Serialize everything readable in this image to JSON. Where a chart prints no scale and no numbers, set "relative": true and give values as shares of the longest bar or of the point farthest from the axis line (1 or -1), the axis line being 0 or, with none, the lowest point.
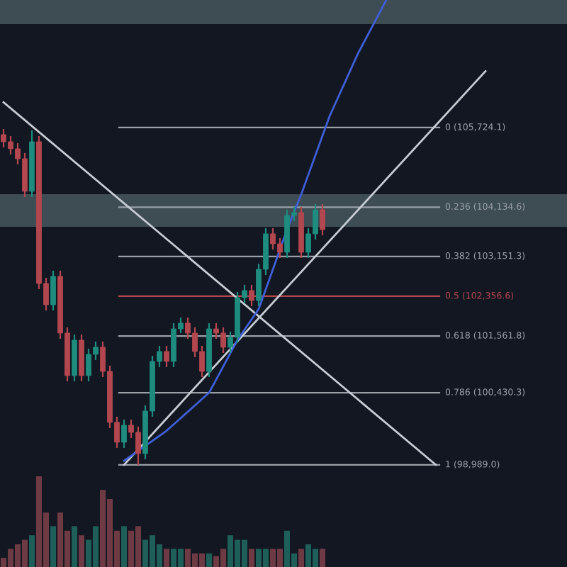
{
  "chart_data": [
    {
      "type": "candlestick",
      "categories": [
        null,
        null,
        null,
        null,
        null,
        null,
        null,
        null,
        null,
        null,
        null,
        null,
        null,
        null,
        null,
        null,
        null,
        null,
        null,
        null,
        null,
        null,
        null,
        null,
        null,
        null,
        null,
        null,
        null,
        null,
        null,
        null,
        null,
        null,
        null,
        null,
        null,
        null,
        null,
        null,
        null,
        null,
        null,
        null,
        null,
        null,
        null,
        null,
        null,
        null,
        null,
        null,
        null,
        null,
        null,
        null,
        null,
        null,
        null,
        null,
        null,
        null,
        null,
        null,
        null,
        null,
        null,
        null,
        null,
        null,
        null,
        null,
        null,
        null,
        null,
        null,
        null,
        null,
        null,
        null
      ],
      "ohlc": [
        [
          105583,
          105696,
          105328,
          105441
        ],
        [
          105441,
          105554,
          105186,
          105300
        ],
        [
          105300,
          105413,
          104988,
          105101
        ],
        [
          105101,
          105215,
          104337,
          104451
        ],
        [
          104451,
          105667,
          104337,
          105441
        ],
        [
          105441,
          105554,
          102498,
          102611
        ],
        [
          102611,
          102724,
          102073,
          102187
        ],
        [
          102187,
          102866,
          102073,
          102753
        ],
        [
          102753,
          102866,
          101507,
          101621
        ],
        [
          101621,
          101734,
          100658,
          100772
        ],
        [
          100772,
          101592,
          100658,
          101479
        ],
        [
          101479,
          101592,
          100658,
          100772
        ],
        [
          100772,
          101309,
          100658,
          101196
        ],
        [
          101196,
          101451,
          101083,
          101338
        ],
        [
          101338,
          101451,
          100743,
          100856
        ],
        [
          100856,
          100970,
          99724,
          99838
        ],
        [
          99838,
          99951,
          99328,
          99441
        ],
        [
          99441,
          99894,
          99328,
          99781
        ],
        [
          99781,
          99894,
          99526,
          99640
        ],
        [
          99640,
          99753,
          98989,
          99215
        ],
        [
          99215,
          100177,
          99102,
          100064
        ],
        [
          100064,
          101168,
          99951,
          101055
        ],
        [
          101055,
          101366,
          100941,
          101253
        ],
        [
          101253,
          101366,
          100941,
          101055
        ],
        [
          101055,
          101819,
          100941,
          101705
        ],
        [
          101705,
          101932,
          101621,
          101819
        ],
        [
          101819,
          101932,
          101507,
          101621
        ],
        [
          101621,
          101734,
          101139,
          101253
        ],
        [
          101253,
          101366,
          100743,
          100856
        ],
        [
          100856,
          101819,
          100743,
          101705
        ],
        [
          101705,
          101819,
          101507,
          101621
        ],
        [
          101621,
          101734,
          101224,
          101338
        ],
        [
          101338,
          101649,
          101224,
          101536
        ],
        [
          101536,
          102441,
          101422,
          102328
        ],
        [
          102328,
          102583,
          102215,
          102470
        ],
        [
          102470,
          102583,
          102158,
          102271
        ],
        [
          102271,
          103007,
          102158,
          102894
        ],
        [
          102894,
          103715,
          102781,
          103602
        ],
        [
          103602,
          103715,
          103290,
          103403
        ],
        [
          103403,
          103517,
          103120,
          103234
        ],
        [
          103234,
          104083,
          103120,
          103969
        ],
        [
          103969,
          104139,
          103856,
          104026
        ],
        [
          104026,
          104139,
          103120,
          103234
        ],
        [
          103234,
          103715,
          103120,
          103602
        ],
        [
          103602,
          104196,
          103488,
          104083
        ],
        [
          104083,
          104196,
          103573,
          103686
        ],
        null,
        null,
        null,
        null,
        null,
        null,
        null,
        null,
        null,
        null,
        null,
        null,
        null,
        null,
        null,
        null,
        null,
        null,
        null,
        null,
        null,
        null,
        null,
        null,
        null,
        null,
        null,
        null,
        null,
        null,
        null,
        null,
        null,
        null
      ],
      "colors": [
        "#b3474f",
        "#b3474f",
        "#b3474f",
        "#b3474f",
        "#1e8c7e",
        "#b3474f",
        "#b3474f",
        "#1e8c7e",
        "#b3474f",
        "#b3474f",
        "#1e8c7e",
        "#b3474f",
        "#1e8c7e",
        "#1e8c7e",
        "#b3474f",
        "#b3474f",
        "#b3474f",
        "#1e8c7e",
        "#b3474f",
        "#b3474f",
        "#1e8c7e",
        "#1e8c7e",
        "#1e8c7e",
        "#b3474f",
        "#1e8c7e",
        "#1e8c7e",
        "#b3474f",
        "#b3474f",
        "#b3474f",
        "#1e8c7e",
        "#b3474f",
        "#b3474f",
        "#1e8c7e",
        "#1e8c7e",
        "#1e8c7e",
        "#b3474f",
        "#1e8c7e",
        "#1e8c7e",
        "#b3474f",
        "#b3474f",
        "#1e8c7e",
        "#1e8c7e",
        "#b3474f",
        "#1e8c7e",
        "#1e8c7e",
        "#b3474f",
        null,
        null,
        null,
        null,
        null,
        null,
        null,
        null,
        null,
        null,
        null,
        null,
        null,
        null,
        null,
        null,
        null,
        null,
        null,
        null,
        null,
        null,
        null,
        null,
        null,
        null,
        null,
        null,
        null,
        null,
        null,
        null,
        null,
        null
      ],
      "series": [
        {
          "type": "line",
          "color": "#c9cdd3",
          "values": [
            106230,
            null,
            null,
            null,
            null,
            null,
            null,
            null,
            null,
            null,
            null,
            null,
            null,
            null,
            null,
            null,
            null,
            null,
            null,
            null,
            null,
            null,
            null,
            null,
            null,
            null,
            null,
            null,
            null,
            null,
            null,
            null,
            null,
            null,
            null,
            null,
            null,
            null,
            null,
            null,
            null,
            null,
            null,
            null,
            null,
            null,
            null,
            null,
            null,
            null,
            null,
            null,
            null,
            null,
            null,
            null,
            null,
            null,
            null,
            null,
            null,
            98990,
            null,
            null,
            null,
            null,
            null,
            null,
            null,
            null,
            null,
            null,
            null,
            null,
            null,
            null,
            null,
            null,
            null,
            null
          ]
        },
        {
          "type": "line",
          "color": "#c9cdd3",
          "values": [
            null,
            null,
            null,
            null,
            null,
            null,
            null,
            null,
            null,
            null,
            null,
            null,
            null,
            null,
            null,
            null,
            null,
            98990,
            null,
            null,
            null,
            null,
            null,
            null,
            null,
            null,
            null,
            null,
            null,
            null,
            null,
            null,
            null,
            null,
            null,
            null,
            null,
            null,
            null,
            null,
            null,
            null,
            null,
            null,
            null,
            null,
            null,
            null,
            null,
            null,
            null,
            null,
            null,
            null,
            null,
            null,
            null,
            null,
            null,
            null,
            null,
            null,
            null,
            null,
            null,
            null,
            null,
            null,
            106850,
            null,
            null,
            null,
            null,
            null,
            null,
            null,
            null,
            null,
            null,
            null
          ]
        },
        {
          "type": "line",
          "color": "#3f5fd8",
          "values": [
            null,
            null,
            null,
            null,
            null,
            null,
            null,
            null,
            null,
            null,
            null,
            null,
            null,
            null,
            null,
            null,
            null,
            99070,
            null,
            null,
            null,
            null,
            null,
            99670,
            null,
            null,
            null,
            null,
            null,
            100430,
            null,
            null,
            null,
            101480,
            null,
            null,
            102100,
            null,
            102890,
            null,
            103690,
            null,
            104390,
            null,
            null,
            null,
            105950,
            null,
            null,
            null,
            107200,
            null,
            null,
            null,
            108270,
            null,
            null,
            null,
            null,
            null,
            null,
            null,
            null,
            null,
            null,
            null,
            null,
            null,
            null,
            null,
            null,
            null,
            null,
            null,
            null,
            null,
            null,
            null,
            null,
            null
          ]
        }
      ],
      "ref_lines": [
        {
          "axis": "y",
          "value": 105724.1,
          "label": "0 (105,724.1)",
          "color": "#9aa0a8"
        },
        {
          "axis": "y",
          "value": 104134.6,
          "label": "0.236 (104,134.6)",
          "color": "#9aa0a8"
        },
        {
          "axis": "y",
          "value": 103151.3,
          "label": "0.382 (103,151.3)",
          "color": "#9aa0a8"
        },
        {
          "axis": "y",
          "value": 102356.6,
          "label": "0.5 (102,356.6)",
          "color": "#b3474f"
        },
        {
          "axis": "y",
          "value": 101561.8,
          "label": "0.618 (101,561.8)",
          "color": "#9aa0a8"
        },
        {
          "axis": "y",
          "value": 100430.3,
          "label": "0.786 (100,430.3)",
          "color": "#9aa0a8"
        },
        {
          "axis": "y",
          "value": 98989.0,
          "label": "1 (98,989.0)",
          "color": "#9aa0a8"
        }
      ],
      "bands": [
        {
          "axis": "y",
          "from": 103743,
          "to": 104394,
          "color": "#4a5a62"
        },
        {
          "axis": "y",
          "from": 107790,
          "to": 108271,
          "color": "#4a5a62"
        }
      ],
      "ylim": [
        96950,
        108271
      ],
      "tick_labels": false,
      "grid": false
    },
    {
      "type": "bar",
      "relative": true,
      "categories": [
        null,
        null,
        null,
        null,
        null,
        null,
        null,
        null,
        null,
        null,
        null,
        null,
        null,
        null,
        null,
        null,
        null,
        null,
        null,
        null,
        null,
        null,
        null,
        null,
        null,
        null,
        null,
        null,
        null,
        null,
        null,
        null,
        null,
        null,
        null,
        null,
        null,
        null,
        null,
        null,
        null,
        null,
        null,
        null,
        null,
        null,
        null,
        null,
        null,
        null,
        null,
        null,
        null,
        null,
        null,
        null,
        null,
        null,
        null,
        null,
        null,
        null,
        null,
        null,
        null,
        null,
        null,
        null,
        null,
        null,
        null,
        null,
        null,
        null,
        null,
        null,
        null,
        null,
        null,
        null
      ],
      "values": [
        0.1,
        0.2,
        0.25,
        0.3,
        0.35,
        1.0,
        0.6,
        0.45,
        0.6,
        0.4,
        0.45,
        0.35,
        0.3,
        0.45,
        0.85,
        0.75,
        0.4,
        0.45,
        0.4,
        0.45,
        0.3,
        0.35,
        0.25,
        0.2,
        0.2,
        0.2,
        0.2,
        0.15,
        0.15,
        0.15,
        0.12,
        0.2,
        0.35,
        0.3,
        0.3,
        0.2,
        0.2,
        0.2,
        0.2,
        0.2,
        0.4,
        0.15,
        0.2,
        0.25,
        0.2,
        0.2,
        null,
        null,
        null,
        null,
        null,
        null,
        null,
        null,
        null,
        null,
        null,
        null,
        null,
        null,
        null,
        null,
        null,
        null,
        null,
        null,
        null,
        null,
        null,
        null,
        null,
        null,
        null,
        null,
        null,
        null,
        null,
        null,
        null,
        null
      ],
      "colors": [
        "#6e3a44",
        "#6e3a44",
        "#6e3a44",
        "#6e3a44",
        "#1f5f5a",
        "#6e3a44",
        "#6e3a44",
        "#1f5f5a",
        "#6e3a44",
        "#6e3a44",
        "#1f5f5a",
        "#6e3a44",
        "#1f5f5a",
        "#1f5f5a",
        "#6e3a44",
        "#6e3a44",
        "#6e3a44",
        "#1f5f5a",
        "#6e3a44",
        "#6e3a44",
        "#1f5f5a",
        "#1f5f5a",
        "#1f5f5a",
        "#6e3a44",
        "#1f5f5a",
        "#1f5f5a",
        "#6e3a44",
        "#6e3a44",
        "#6e3a44",
        "#1f5f5a",
        "#6e3a44",
        "#6e3a44",
        "#1f5f5a",
        "#1f5f5a",
        "#1f5f5a",
        "#6e3a44",
        "#1f5f5a",
        "#1f5f5a",
        "#6e3a44",
        "#6e3a44",
        "#1f5f5a",
        "#1f5f5a",
        "#6e3a44",
        "#1f5f5a",
        "#1f5f5a",
        "#6e3a44",
        null,
        null,
        null,
        null,
        null,
        null,
        null,
        null,
        null,
        null,
        null,
        null,
        null,
        null,
        null,
        null,
        null,
        null,
        null,
        null,
        null,
        null,
        null,
        null,
        null,
        null,
        null,
        null,
        null,
        null,
        null,
        null,
        null,
        null
      ],
      "tick_labels": false,
      "grid": false
    }
  ]
}
